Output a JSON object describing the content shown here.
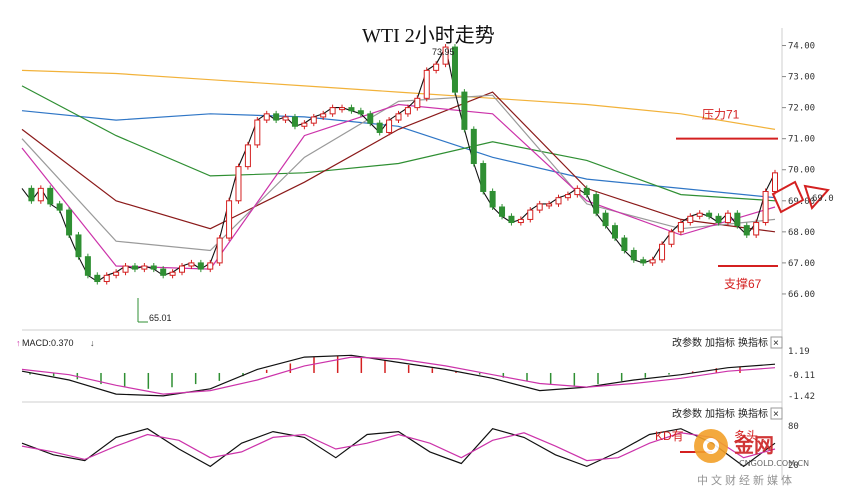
{
  "chart_data": {
    "type": "line",
    "title": "WTI 2小时走势",
    "main_panel": {
      "y_ticks": [
        74.0,
        73.0,
        72.0,
        71.0,
        70.0,
        69.0,
        68.0,
        67.0,
        66.0
      ],
      "ylim": [
        65.0,
        74.5
      ],
      "annotations": {
        "high_label": "73.95",
        "low_label": "65.01",
        "resistance": {
          "label": "压力71",
          "value": 71
        },
        "support": {
          "label": "支撑67",
          "value": 66.9
        }
      },
      "price_series": [
        69.4,
        69.0,
        69.4,
        68.9,
        68.7,
        67.9,
        67.2,
        66.6,
        66.4,
        66.6,
        66.7,
        66.9,
        66.8,
        66.9,
        66.8,
        66.6,
        66.7,
        66.9,
        67.0,
        66.8,
        67.0,
        67.8,
        69.0,
        70.1,
        70.8,
        71.6,
        71.8,
        71.6,
        71.7,
        71.4,
        71.5,
        71.7,
        71.8,
        72.0,
        72.0,
        71.9,
        71.8,
        71.5,
        71.2,
        71.6,
        71.8,
        72.0,
        72.3,
        73.2,
        73.4,
        73.95,
        72.5,
        71.3,
        70.2,
        69.3,
        68.8,
        68.5,
        68.3,
        68.4,
        68.7,
        68.9,
        68.9,
        69.1,
        69.2,
        69.4,
        69.2,
        68.6,
        68.2,
        67.8,
        67.4,
        67.1,
        67.0,
        67.1,
        67.6,
        68.0,
        68.3,
        68.5,
        68.6,
        68.5,
        68.3,
        68.6,
        68.2,
        67.9,
        68.3,
        69.3,
        69.9
      ],
      "moving_averages": [
        {
          "color": "#f2b23a",
          "values": [
            73.2,
            73.1,
            72.9,
            72.7,
            72.5,
            72.3,
            72.1,
            71.8,
            71.3
          ]
        },
        {
          "color": "#2f76c6",
          "values": [
            71.9,
            71.6,
            71.8,
            71.7,
            71.4,
            70.4,
            69.7,
            69.4,
            69.1
          ]
        },
        {
          "color": "#2f8f33",
          "values": [
            72.7,
            71.1,
            69.8,
            69.9,
            70.2,
            70.9,
            70.3,
            69.2,
            69.0
          ]
        },
        {
          "color": "#8b1a1a",
          "values": [
            71.3,
            69.0,
            68.1,
            69.6,
            71.3,
            72.5,
            69.4,
            68.4,
            68.0
          ]
        },
        {
          "color": "#9a9a9a",
          "values": [
            71.0,
            67.7,
            67.4,
            70.4,
            72.2,
            72.4,
            68.9,
            68.1,
            68.4
          ]
        },
        {
          "color": "#cc33aa",
          "values": [
            70.7,
            66.9,
            66.8,
            71.1,
            72.1,
            71.8,
            69.0,
            67.9,
            68.8
          ]
        }
      ],
      "right_arrow_label": "69.0"
    },
    "macd_panel": {
      "label": "MACD:0.370",
      "y_ticks": [
        "1.19",
        "-0.11",
        "-1.42"
      ],
      "histogram": [
        -0.1,
        -0.2,
        -0.4,
        -0.7,
        -0.9,
        -1.0,
        -0.9,
        -0.7,
        -0.5,
        -0.2,
        0.2,
        0.6,
        1.0,
        1.1,
        1.0,
        0.8,
        0.5,
        0.3,
        0.1,
        -0.1,
        -0.3,
        -0.5,
        -0.7,
        -0.8,
        -0.7,
        -0.5,
        -0.3,
        -0.1,
        0.1,
        0.3,
        0.4
      ],
      "dif": [
        0.1,
        -0.4,
        -1.2,
        -1.3,
        -0.9,
        0.2,
        0.9,
        1.0,
        0.6,
        0.2,
        -0.3,
        -1.0,
        -0.8,
        -0.4,
        -0.1,
        0.3,
        0.5
      ],
      "dea": [
        0.2,
        -0.1,
        -0.7,
        -1.2,
        -1.0,
        -0.4,
        0.4,
        0.9,
        0.8,
        0.4,
        -0.1,
        -0.6,
        -0.8,
        -0.6,
        -0.3,
        0.1,
        0.3
      ]
    },
    "kd_panel": {
      "label": "KD有",
      "y_ticks": [
        "80",
        "20"
      ],
      "k": [
        60,
        40,
        30,
        70,
        85,
        50,
        20,
        60,
        80,
        70,
        35,
        75,
        80,
        45,
        25,
        85,
        70,
        40,
        20,
        45,
        75,
        85,
        60,
        20,
        60
      ],
      "d": [
        55,
        45,
        32,
        55,
        75,
        65,
        35,
        45,
        70,
        75,
        50,
        60,
        75,
        60,
        35,
        65,
        78,
        55,
        30,
        35,
        60,
        78,
        70,
        35,
        50
      ]
    },
    "grid": false
  },
  "toolbar": {
    "item_1": "改参数",
    "item_2": "加指标",
    "item_3": "换指标",
    "close": "×"
  },
  "watermark": {
    "brand": "金网",
    "site": "CNGOLD.COM.CN",
    "slogan": "中文财经新媒体",
    "overlay_text": "多头"
  }
}
